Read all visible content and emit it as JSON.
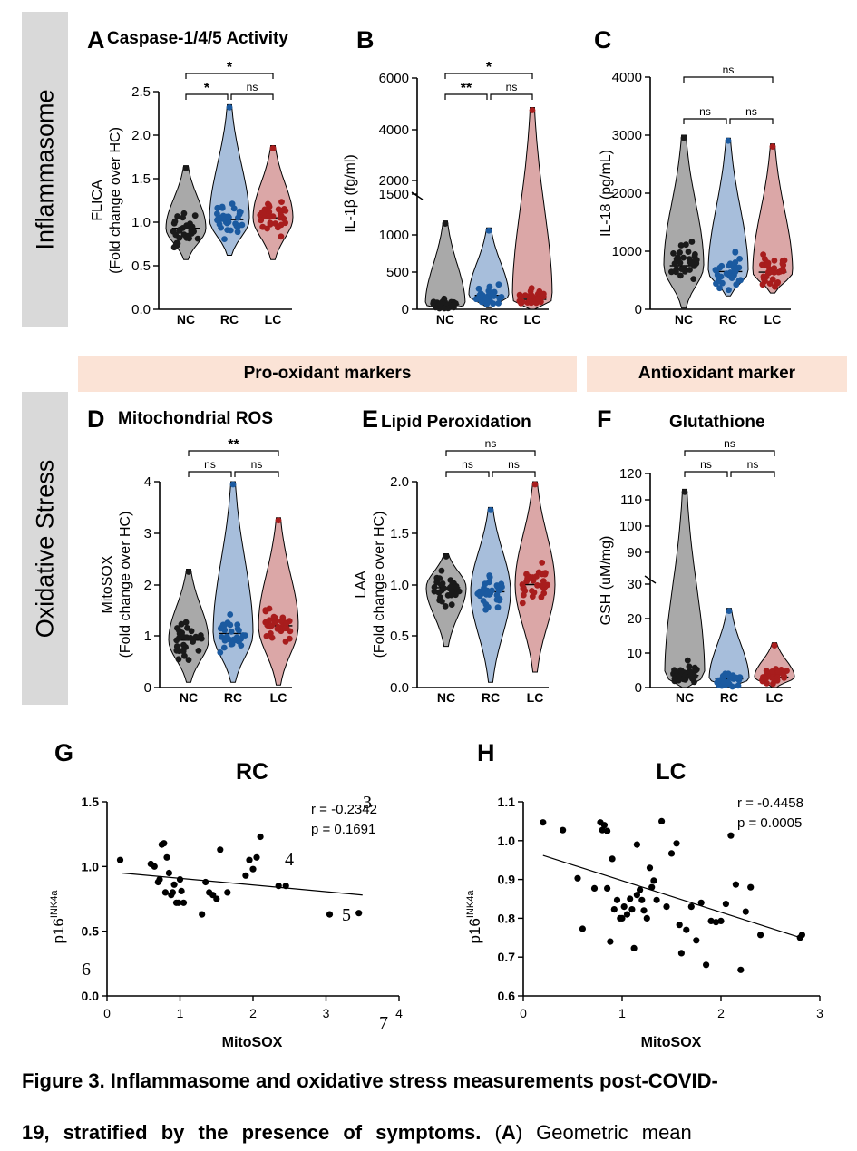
{
  "sections": {
    "inflammasome": "Inflammasome",
    "oxidative": "Oxidative Stress",
    "pro_oxidant": "Pro-oxidant markers",
    "antioxidant": "Antioxidant marker"
  },
  "colors": {
    "NC": "#1a1a1a",
    "RC": "#1b5aa0",
    "LC": "#a81d1d",
    "NC_fill": "#8c8c8c",
    "RC_fill": "#8aa8cf",
    "LC_fill": "#cf8a8a",
    "band": "#fbe3d6",
    "sidebar": "#d9d9d9"
  },
  "chart_data": [
    {
      "panel": "A",
      "type": "violin",
      "title": "Caspase-1/4/5 Activity",
      "ylabel": "FLICA",
      "ylabel2": "(Fold change over HC)",
      "categories": [
        "NC",
        "RC",
        "LC"
      ],
      "ylim": [
        0,
        2.5
      ],
      "yticks": [
        "0.0",
        "0.5",
        "1.0",
        "1.5",
        "2.0",
        "2.5"
      ],
      "medians": [
        0.93,
        1.03,
        1.05
      ],
      "ranges": [
        [
          0.57,
          1.65
        ],
        [
          0.62,
          2.35
        ],
        [
          0.57,
          1.88
        ]
      ],
      "significance": [
        {
          "from": "NC",
          "to": "RC",
          "label": "*"
        },
        {
          "from": "RC",
          "to": "LC",
          "label": "ns"
        },
        {
          "from": "NC",
          "to": "LC",
          "label": "*"
        }
      ]
    },
    {
      "panel": "B",
      "type": "violin",
      "title": "",
      "ylabel": "IL-1β (fg/ml)",
      "categories": [
        "NC",
        "RC",
        "LC"
      ],
      "ylim": [
        0,
        6000
      ],
      "axis_break": [
        1500,
        2000
      ],
      "yticks": [
        "0",
        "500",
        "1000",
        "1500",
        "2000",
        "4000",
        "6000"
      ],
      "medians": [
        60,
        180,
        130
      ],
      "ranges": [
        [
          0,
          1150
        ],
        [
          20,
          1060
        ],
        [
          0,
          4850
        ]
      ],
      "significance": [
        {
          "from": "NC",
          "to": "RC",
          "label": "**"
        },
        {
          "from": "RC",
          "to": "LC",
          "label": "ns"
        },
        {
          "from": "NC",
          "to": "LC",
          "label": "*"
        }
      ]
    },
    {
      "panel": "C",
      "type": "violin",
      "title": "",
      "ylabel": "IL-18 (pg/mL)",
      "categories": [
        "NC",
        "RC",
        "LC"
      ],
      "ylim": [
        0,
        4000
      ],
      "yticks": [
        "0",
        "1000",
        "2000",
        "3000",
        "4000"
      ],
      "medians": [
        750,
        650,
        640
      ],
      "ranges": [
        [
          20,
          3000
        ],
        [
          230,
          2950
        ],
        [
          280,
          2850
        ]
      ],
      "significance": [
        {
          "from": "NC",
          "to": "RC",
          "label": "ns"
        },
        {
          "from": "RC",
          "to": "LC",
          "label": "ns"
        },
        {
          "from": "NC",
          "to": "LC",
          "label": "ns"
        }
      ]
    },
    {
      "panel": "D",
      "type": "violin",
      "title": "Mitochondrial ROS",
      "ylabel": "MitoSOX",
      "ylabel2": "(Fold change over HC)",
      "categories": [
        "NC",
        "RC",
        "LC"
      ],
      "ylim": [
        0,
        4
      ],
      "yticks": [
        "0",
        "1",
        "2",
        "3",
        "4"
      ],
      "medians": [
        0.92,
        1.05,
        1.2
      ],
      "ranges": [
        [
          0.1,
          2.3
        ],
        [
          0.1,
          4.0
        ],
        [
          0.05,
          3.3
        ]
      ],
      "significance": [
        {
          "from": "NC",
          "to": "RC",
          "label": "ns"
        },
        {
          "from": "RC",
          "to": "LC",
          "label": "ns"
        },
        {
          "from": "NC",
          "to": "LC",
          "label": "**"
        }
      ]
    },
    {
      "panel": "E",
      "type": "violin",
      "title": "Lipid Peroxidation",
      "ylabel": "LAA",
      "ylabel2": "(Fold change over HC)",
      "categories": [
        "NC",
        "RC",
        "LC"
      ],
      "ylim": [
        0,
        2.0
      ],
      "yticks": [
        "0.0",
        "0.5",
        "1.0",
        "1.5",
        "2.0"
      ],
      "medians": [
        0.97,
        0.93,
        1.0
      ],
      "ranges": [
        [
          0.4,
          1.3
        ],
        [
          0.05,
          1.75
        ],
        [
          0.15,
          2.0
        ]
      ],
      "significance": [
        {
          "from": "NC",
          "to": "RC",
          "label": "ns"
        },
        {
          "from": "RC",
          "to": "LC",
          "label": "ns"
        },
        {
          "from": "NC",
          "to": "LC",
          "label": "ns"
        }
      ]
    },
    {
      "panel": "F",
      "type": "violin",
      "title": "Glutathione",
      "ylabel": "GSH (uM/mg)",
      "categories": [
        "NC",
        "RC",
        "LC"
      ],
      "ylim": [
        0,
        120
      ],
      "axis_break": [
        30,
        85
      ],
      "yticks": [
        "0",
        "10",
        "20",
        "30",
        "90",
        "100",
        "110",
        "120"
      ],
      "medians": [
        3.5,
        2.5,
        3.0
      ],
      "ranges": [
        [
          0,
          114
        ],
        [
          0,
          23
        ],
        [
          0,
          13
        ]
      ],
      "significance": [
        {
          "from": "NC",
          "to": "RC",
          "label": "ns"
        },
        {
          "from": "RC",
          "to": "LC",
          "label": "ns"
        },
        {
          "from": "NC",
          "to": "LC",
          "label": "ns"
        }
      ]
    },
    {
      "panel": "G",
      "type": "scatter",
      "title": "RC",
      "xlabel": "MitoSOX",
      "ylabel": "p16",
      "ylabel_sup": "INK4a",
      "xlim": [
        0,
        4
      ],
      "ylim": [
        0,
        1.5
      ],
      "xticks": [
        "0",
        "1",
        "2",
        "3",
        "4"
      ],
      "yticks": [
        "0.0",
        "0.5",
        "1.0",
        "1.5"
      ],
      "stats": [
        "r = -0.2342",
        "p = 0.1691"
      ],
      "stray_numerals": [
        "3",
        "4",
        "5",
        "6",
        "7"
      ],
      "fit": [
        [
          0.2,
          0.95
        ],
        [
          3.5,
          0.78
        ]
      ],
      "x": [
        0.18,
        0.6,
        0.65,
        0.72,
        0.75,
        0.78,
        0.8,
        0.82,
        0.85,
        0.88,
        0.9,
        0.95,
        0.98,
        1.0,
        1.05,
        1.3,
        1.35,
        1.4,
        1.45,
        1.5,
        1.55,
        1.65,
        1.9,
        1.95,
        2.0,
        2.05,
        2.1,
        2.35,
        2.45,
        3.05,
        3.45,
        0.7,
        0.92,
        1.02
      ],
      "y": [
        1.05,
        1.02,
        1.0,
        0.9,
        1.17,
        1.18,
        0.8,
        1.07,
        0.95,
        0.78,
        0.8,
        0.72,
        0.72,
        0.9,
        0.72,
        0.63,
        0.88,
        0.8,
        0.78,
        0.75,
        1.13,
        0.8,
        0.93,
        1.05,
        0.98,
        1.07,
        1.23,
        0.85,
        0.85,
        0.63,
        0.64,
        0.88,
        0.86,
        0.81
      ]
    },
    {
      "panel": "H",
      "type": "scatter",
      "title": "LC",
      "xlabel": "MitoSOX",
      "ylabel": "p16",
      "ylabel_sup": "INK4a",
      "xlim": [
        0,
        3
      ],
      "ylim": [
        0.6,
        1.1
      ],
      "xticks": [
        "0",
        "1",
        "2",
        "3"
      ],
      "yticks": [
        "0.6",
        "0.7",
        "0.8",
        "0.9",
        "1.0",
        "1.1"
      ],
      "stats": [
        "r = -0.4458",
        "p = 0.0005"
      ],
      "fit": [
        [
          0.2,
          0.962
        ],
        [
          2.83,
          0.748
        ]
      ],
      "x": [
        0.2,
        0.4,
        0.55,
        0.6,
        0.72,
        0.78,
        0.8,
        0.82,
        0.85,
        0.88,
        0.9,
        0.95,
        0.98,
        1.0,
        1.02,
        1.05,
        1.08,
        1.1,
        1.12,
        1.15,
        1.18,
        1.2,
        1.22,
        1.25,
        1.28,
        1.3,
        1.32,
        1.35,
        1.4,
        1.45,
        1.5,
        1.55,
        1.6,
        1.65,
        1.7,
        1.75,
        1.8,
        1.85,
        1.9,
        1.95,
        2.0,
        2.05,
        2.1,
        2.15,
        2.2,
        2.25,
        2.3,
        2.4,
        2.8,
        2.82,
        0.92,
        1.15,
        1.58,
        0.85
      ],
      "y": [
        1.047,
        1.027,
        0.903,
        0.773,
        0.877,
        1.047,
        1.027,
        1.04,
        0.877,
        0.74,
        0.953,
        0.847,
        0.8,
        0.8,
        0.83,
        0.81,
        0.85,
        0.823,
        0.723,
        0.99,
        0.873,
        0.847,
        0.82,
        0.8,
        0.93,
        0.88,
        0.897,
        0.847,
        1.05,
        0.83,
        0.967,
        0.993,
        0.71,
        0.77,
        0.83,
        0.743,
        0.84,
        0.68,
        0.793,
        0.79,
        0.793,
        0.837,
        1.013,
        0.887,
        0.667,
        0.817,
        0.88,
        0.757,
        0.75,
        0.757,
        0.823,
        0.86,
        0.783,
        1.025
      ]
    }
  ],
  "caption": {
    "lead": "Figure 3. Inflammasome and oxidative stress measurements post-COVID-",
    "line2_bold": "19, stratified by the presence of symptoms.",
    "line2_plain_a": " (",
    "line2_bold_a": "A",
    "line2_plain_b": ") Geometric mean"
  }
}
